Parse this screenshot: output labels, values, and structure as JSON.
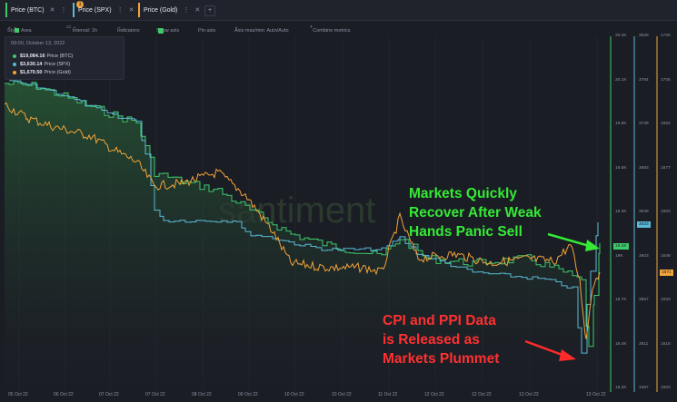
{
  "tabs": [
    {
      "label": "Price (BTC)",
      "color": "#3ec96a"
    },
    {
      "label": "Price (SPX)",
      "color": "#5ab9d6"
    },
    {
      "label": "Price (Gold)",
      "color": "#f2a33a"
    }
  ],
  "tab_badge": "1",
  "toolbar": {
    "style": "Style: Area",
    "interval": "Interval: 1h",
    "indicators": "Indicators:",
    "show_axis": "Show axis",
    "pin_axis": "Pin axis",
    "axis_maxmin": "Axis max/min: Auto/Auto",
    "combine": "Combine metrics"
  },
  "legend": {
    "date": "09:00, October 13, 2022",
    "rows": [
      {
        "value": "$19,084.16",
        "label": "Price (BTC)",
        "color": "#3ec96a"
      },
      {
        "value": "$3,630.14",
        "label": "Price (SPX)",
        "color": "#5ab9d6"
      },
      {
        "value": "$1,670.50",
        "label": "Price (Gold)",
        "color": "#f2a33a"
      }
    ]
  },
  "watermark": "santiment",
  "annotations": {
    "green": [
      "Markets Quickly",
      "Recover After Weak",
      "Hands Panic Sell"
    ],
    "red": [
      "CPI and PPI Data",
      "is Released as",
      "Markets Plummet"
    ]
  },
  "axes": {
    "btc_ticks": [
      "20.4K",
      "20.1K",
      "19.8K",
      "19.6K",
      "19.3K",
      "19K",
      "18.7K",
      "18.4K",
      "18.2K"
    ],
    "spx_ticks": [
      "3828",
      "3784",
      "3739",
      "3693",
      "3649",
      "3603",
      "3557",
      "3511",
      "3467"
    ],
    "gold_ticks": [
      "1720",
      "1706",
      "1692",
      "1677",
      "1663",
      "1648",
      "1633",
      "1618",
      "1603"
    ],
    "btc_tag": "19.1K",
    "spx_tag": "3633",
    "gold_tag": "1671"
  },
  "x_labels": [
    "05 Oct 22",
    "06 Oct 22",
    "07 Oct 22",
    "07 Oct 22",
    "08 Oct 22",
    "09 Oct 22",
    "10 Oct 22",
    "10 Oct 22",
    "11 Oct 22",
    "12 Oct 22",
    "12 Oct 22",
    "13 Oct 22",
    "13 Oct 22"
  ],
  "chart_data": {
    "type": "area",
    "series": [
      {
        "name": "Price (BTC)",
        "color": "#3ec96a"
      },
      {
        "name": "Price (SPX)",
        "color": "#5ab9d6"
      },
      {
        "name": "Price (Gold)",
        "color": "#f2a33a"
      }
    ]
  }
}
